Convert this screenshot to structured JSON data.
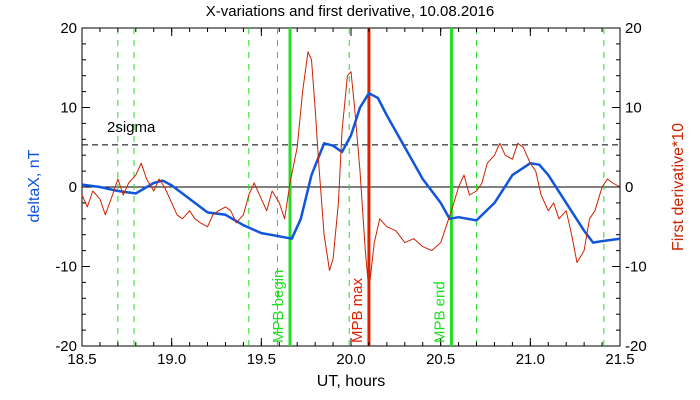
{
  "chart_data": {
    "type": "line",
    "title": "X-variations and first derivative, 10.08.2016",
    "xlabel": "UT, hours",
    "ylabel_left": "deltaX, nT",
    "ylabel_right": "First derivative*10",
    "xlim": [
      18.5,
      21.5
    ],
    "ylim": [
      -20,
      20
    ],
    "xticks": [
      18.5,
      19.0,
      19.5,
      20.0,
      20.5,
      21.0,
      21.5
    ],
    "xtick_labels": [
      "18.5",
      "19.0",
      "19.5",
      "20.0",
      "20.5",
      "21.0",
      "21.5"
    ],
    "yticks": [
      -20,
      -10,
      0,
      10,
      20
    ],
    "ytick_labels_left": [
      "-20",
      "-10",
      "0",
      "10",
      "20"
    ],
    "ytick_labels_right": [
      "-20",
      "-10",
      "0",
      "10",
      "20"
    ],
    "threshold": {
      "label": "2sigma",
      "value": 5.3
    },
    "vertical_lines": [
      {
        "x": 19.66,
        "label": "MPB begin",
        "color": "#22dd22",
        "style": "solid"
      },
      {
        "x": 20.1,
        "label": "MPB max",
        "color": "#dd2200",
        "style": "solid"
      },
      {
        "x": 20.56,
        "label": "MPB end",
        "color": "#22dd22",
        "style": "solid"
      },
      {
        "x": 18.7,
        "label": "",
        "color": "#22dd22",
        "style": "dashed"
      },
      {
        "x": 18.79,
        "label": "",
        "color": "#22dd22",
        "style": "dashed"
      },
      {
        "x": 19.43,
        "label": "",
        "color": "#22dd22",
        "style": "dashed"
      },
      {
        "x": 19.59,
        "label": "",
        "color": "#22dd22",
        "style": "dashed"
      },
      {
        "x": 19.99,
        "label": "",
        "color": "#22dd22",
        "style": "dashed"
      },
      {
        "x": 20.7,
        "label": "",
        "color": "#22dd22",
        "style": "dashed"
      },
      {
        "x": 21.41,
        "label": "",
        "color": "#22dd22",
        "style": "dashed"
      }
    ],
    "series": [
      {
        "color": "#1155dd",
        "x": [
          18.5,
          18.6,
          18.7,
          18.8,
          18.9,
          18.95,
          19.0,
          19.1,
          19.2,
          19.3,
          19.4,
          19.5,
          19.6,
          19.67,
          19.72,
          19.78,
          19.85,
          19.9,
          19.95,
          20.0,
          20.05,
          20.1,
          20.15,
          20.2,
          20.3,
          20.4,
          20.5,
          20.55,
          20.6,
          20.7,
          20.8,
          20.9,
          21.0,
          21.05,
          21.1,
          21.2,
          21.3,
          21.35,
          21.4,
          21.5
        ],
        "values": [
          0.3,
          0.0,
          -0.5,
          -0.8,
          0.5,
          0.8,
          0.2,
          -1.5,
          -3.2,
          -3.5,
          -4.8,
          -5.8,
          -6.2,
          -6.5,
          -4.0,
          1.5,
          5.5,
          5.2,
          4.4,
          6.5,
          10.0,
          11.8,
          11.2,
          9.0,
          5.0,
          1.0,
          -2.0,
          -4.0,
          -3.8,
          -4.2,
          -2.0,
          1.5,
          3.0,
          2.8,
          1.5,
          -2.0,
          -5.5,
          -7.0,
          -6.8,
          -6.5
        ]
      },
      {
        "color": "#cc2200",
        "x": [
          18.5,
          18.53,
          18.56,
          18.6,
          18.63,
          18.67,
          18.7,
          18.73,
          18.76,
          18.8,
          18.83,
          18.86,
          18.9,
          18.93,
          18.96,
          19.0,
          19.03,
          19.06,
          19.1,
          19.13,
          19.16,
          19.2,
          19.23,
          19.26,
          19.3,
          19.33,
          19.36,
          19.4,
          19.43,
          19.46,
          19.5,
          19.53,
          19.56,
          19.6,
          19.63,
          19.66,
          19.7,
          19.73,
          19.76,
          19.78,
          19.8,
          19.82,
          19.85,
          19.88,
          19.9,
          19.93,
          19.95,
          19.98,
          20.0,
          20.02,
          20.05,
          20.08,
          20.1,
          20.13,
          20.16,
          20.2,
          20.25,
          20.3,
          20.35,
          20.4,
          20.45,
          20.5,
          20.53,
          20.56,
          20.6,
          20.63,
          20.66,
          20.7,
          20.73,
          20.76,
          20.8,
          20.83,
          20.86,
          20.9,
          20.93,
          20.96,
          21.0,
          21.03,
          21.06,
          21.1,
          21.13,
          21.16,
          21.2,
          21.23,
          21.26,
          21.3,
          21.33,
          21.36,
          21.4,
          21.43,
          21.46,
          21.5
        ],
        "values": [
          -1.0,
          -2.5,
          -0.5,
          -1.5,
          -3.5,
          -1.0,
          1.0,
          -1.0,
          0.5,
          1.5,
          3.0,
          1.0,
          -0.5,
          1.0,
          0.0,
          -2.0,
          -3.5,
          -4.0,
          -3.0,
          -4.0,
          -4.5,
          -5.0,
          -3.5,
          -3.0,
          -2.5,
          -3.0,
          -4.5,
          -3.5,
          -1.0,
          0.5,
          -1.5,
          -3.0,
          -0.5,
          -2.0,
          -4.0,
          0.5,
          5.0,
          12.0,
          17.0,
          16.0,
          10.0,
          3.0,
          -6.0,
          -10.5,
          -9.0,
          -2.0,
          7.0,
          14.0,
          14.5,
          10.0,
          2.0,
          -8.0,
          -13.0,
          -7.0,
          -4.0,
          -5.0,
          -5.5,
          -7.0,
          -6.5,
          -7.5,
          -8.0,
          -7.0,
          -5.0,
          -3.0,
          0.0,
          1.5,
          -1.0,
          -0.5,
          0.5,
          3.0,
          4.0,
          5.5,
          4.0,
          3.5,
          5.5,
          5.0,
          3.0,
          2.0,
          -1.0,
          -3.0,
          -2.0,
          -4.0,
          -3.0,
          -6.0,
          -9.5,
          -8.0,
          -4.0,
          -3.0,
          0.0,
          1.0,
          0.5,
          0.0
        ]
      }
    ],
    "colors": {
      "left_axis_label": "#1155dd",
      "right_axis_label": "#cc2200",
      "threshold_line": "#000000",
      "zero_line": "#000000"
    }
  }
}
